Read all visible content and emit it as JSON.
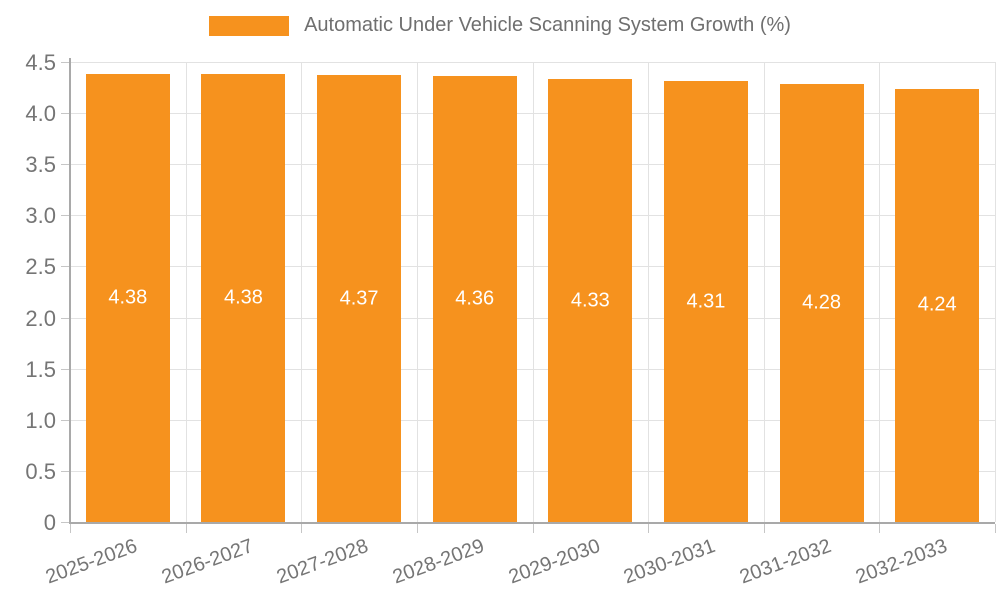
{
  "legend": {
    "label": "Automatic Under Vehicle Scanning System Growth (%)"
  },
  "chart_data": {
    "type": "bar",
    "title": "",
    "xlabel": "",
    "ylabel": "",
    "categories": [
      "2025-2026",
      "2026-2027",
      "2027-2028",
      "2028-2029",
      "2029-2030",
      "2030-2031",
      "2031-2032",
      "2032-2033"
    ],
    "series": [
      {
        "name": "Automatic Under Vehicle Scanning System Growth (%)",
        "values": [
          4.38,
          4.38,
          4.37,
          4.36,
          4.33,
          4.31,
          4.28,
          4.24
        ],
        "value_labels": [
          "4.38",
          "4.38",
          "4.37",
          "4.36",
          "4.33",
          "4.31",
          "4.28",
          "4.24"
        ]
      }
    ],
    "ylim": [
      0,
      4.5
    ],
    "yticks": [
      {
        "value": 0,
        "label": "0"
      },
      {
        "value": 0.5,
        "label": "0.5"
      },
      {
        "value": 1.0,
        "label": "1.0"
      },
      {
        "value": 1.5,
        "label": "1.5"
      },
      {
        "value": 2.0,
        "label": "2.0"
      },
      {
        "value": 2.5,
        "label": "2.5"
      },
      {
        "value": 3.0,
        "label": "3.0"
      },
      {
        "value": 3.5,
        "label": "3.5"
      },
      {
        "value": 4.0,
        "label": "4.0"
      },
      {
        "value": 4.5,
        "label": "4.5"
      }
    ],
    "grid": true,
    "legend_position": "top-center",
    "x_label_rotation_deg": -20,
    "colors": {
      "bar": "#f6921e",
      "bar_value_label": "#ffffff",
      "tick_label": "#757575",
      "grid": "#e2e2e2",
      "axis": "#a9a9a9",
      "background": "#ffffff"
    }
  }
}
